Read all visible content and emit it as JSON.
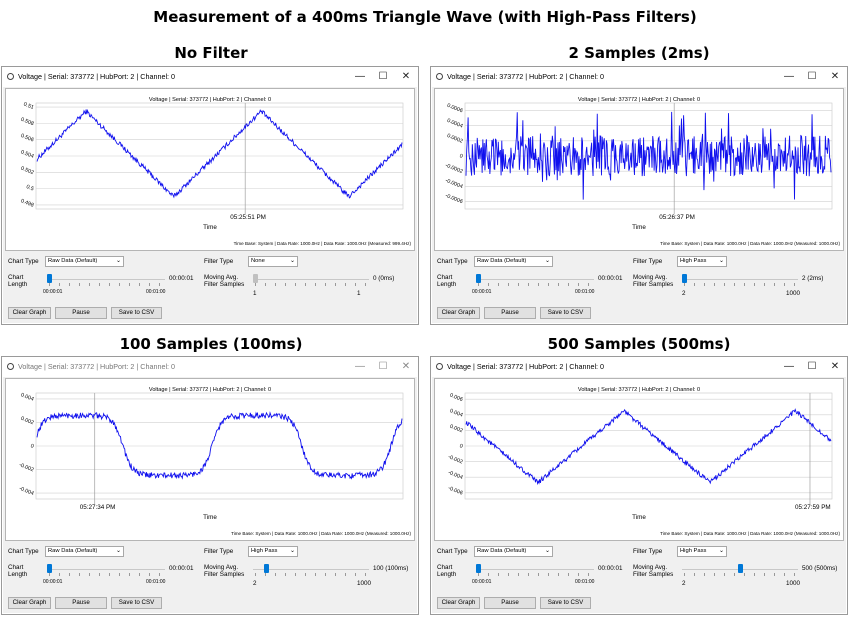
{
  "page_title": "Measurement of a 400ms Triangle Wave (with High-Pass Filters)",
  "panels": [
    {
      "heading": "No Filter",
      "window_title": "Voltage | Serial: 373772 | HubPort: 2 | Channel: 0",
      "window_active": true,
      "controls": {
        "minimize": "—",
        "maximize": "☐",
        "close": "✕"
      },
      "chart_header": "Voltage | Serial: 373772 | HubPort: 2 | Channel: 0",
      "y_ticks": [
        "0.51",
        "0.508",
        "0.506",
        "0.504",
        "0.502",
        "0.5",
        "0.498"
      ],
      "x_time_label": "05:25:51 PM",
      "x_axis_label": "Time",
      "info": "Time Base: System  |  Data Rate: 1000.0Hz  |  Data Rate: 1000.0Hz (Measured: 999.4Hz)",
      "chart_type_label": "Chart Type",
      "chart_type_value": "Raw Data (Default)",
      "chart_length_label": "Chart Length",
      "chart_length_value": "00:00:01",
      "chart_length_min": "00:00:01",
      "chart_length_max": "00:01:00",
      "filter_type_label": "Filter Type",
      "filter_type_value": "None",
      "ma_label": "Moving Avg. Filter Samples",
      "ma_value": "0 (0ms)",
      "ma_min": "1",
      "ma_max": "1",
      "ma_fraction": 0,
      "ma_disabled": true,
      "buttons": {
        "clear": "Clear Graph",
        "pause": "Pause",
        "save": "Save to CSV"
      }
    },
    {
      "heading": "2 Samples (2ms)",
      "window_title": "Voltage | Serial: 373772 | HubPort: 2 | Channel: 0",
      "window_active": true,
      "controls": {
        "minimize": "—",
        "maximize": "☐",
        "close": "✕"
      },
      "chart_header": "Voltage | Serial: 373772 | HubPort: 2 | Channel: 0",
      "y_ticks": [
        "0.0006",
        "0.0004",
        "0.0002",
        "0",
        "-0.0002",
        "-0.0004",
        "-0.0006"
      ],
      "x_time_label": "05:26:37 PM",
      "x_axis_label": "Time",
      "info": "Time Base: System  |  Data Rate: 1000.0Hz  |  Data Rate: 1000.0Hz (Measured: 1000.0Hz)",
      "chart_type_label": "Chart Type",
      "chart_type_value": "Raw Data (Default)",
      "chart_length_label": "Chart Length",
      "chart_length_value": "00:00:01",
      "chart_length_min": "00:00:01",
      "chart_length_max": "00:01:00",
      "filter_type_label": "Filter Type",
      "filter_type_value": "High Pass",
      "ma_label": "Moving Avg. Filter Samples",
      "ma_value": "2 (2ms)",
      "ma_min": "2",
      "ma_max": "1000",
      "ma_fraction": 0,
      "ma_disabled": false,
      "buttons": {
        "clear": "Clear Graph",
        "pause": "Pause",
        "save": "Save to CSV"
      }
    },
    {
      "heading": "100 Samples (100ms)",
      "window_title": "Voltage | Serial: 373772 | HubPort: 2 | Channel: 0",
      "window_active": false,
      "controls": {
        "minimize": "—",
        "maximize": "☐",
        "close": "✕"
      },
      "chart_header": "Voltage | Serial: 373772 | HubPort: 2 | Channel: 0",
      "y_ticks": [
        "0.004",
        "0.002",
        "0",
        "-0.002",
        "-0.004"
      ],
      "x_time_label": "05:27:34 PM",
      "x_axis_label": "Time",
      "info": "Time Base: System  |  Data Rate: 1000.0Hz  |  Data Rate: 1000.0Hz (Measured: 1000.0Hz)",
      "chart_type_label": "Chart Type",
      "chart_type_value": "Raw Data (Default)",
      "chart_length_label": "Chart Length",
      "chart_length_value": "00:00:01",
      "chart_length_min": "00:00:01",
      "chart_length_max": "00:01:00",
      "filter_type_label": "Filter Type",
      "filter_type_value": "High Pass",
      "ma_label": "Moving Avg. Filter Samples",
      "ma_value": "100 (100ms)",
      "ma_min": "2",
      "ma_max": "1000",
      "ma_fraction": 0.099,
      "ma_disabled": false,
      "buttons": {
        "clear": "Clear Graph",
        "pause": "Pause",
        "save": "Save to CSV"
      }
    },
    {
      "heading": "500 Samples (500ms)",
      "window_title": "Voltage | Serial: 373772 | HubPort: 2 | Channel: 0",
      "window_active": true,
      "controls": {
        "minimize": "—",
        "maximize": "☐",
        "close": "✕"
      },
      "chart_header": "Voltage | Serial: 373772 | HubPort: 2 | Channel: 0",
      "y_ticks": [
        "0.006",
        "0.004",
        "0.002",
        "0",
        "-0.002",
        "-0.004",
        "-0.006"
      ],
      "x_time_label": "05:27:59 PM",
      "x_axis_label": "Time",
      "info": "Time Base: System  |  Data Rate: 1000.0Hz  |  Data Rate: 1000.0Hz (Measured: 1000.0Hz)",
      "chart_type_label": "Chart Type",
      "chart_type_value": "Raw Data (Default)",
      "chart_length_label": "Chart Length",
      "chart_length_value": "00:00:01",
      "chart_length_min": "00:00:01",
      "chart_length_max": "00:01:00",
      "filter_type_label": "Filter Type",
      "filter_type_value": "High Pass",
      "ma_label": "Moving Avg. Filter Samples",
      "ma_value": "500 (500ms)",
      "ma_min": "2",
      "ma_max": "1000",
      "ma_fraction": 0.5,
      "ma_disabled": false,
      "buttons": {
        "clear": "Clear Graph",
        "pause": "Pause",
        "save": "Save to CSV"
      }
    }
  ],
  "chart_data": [
    {
      "type": "line",
      "x_label": "Time",
      "y_ticks": [
        0.51,
        0.508,
        0.506,
        0.504,
        0.502,
        0.5,
        0.498
      ],
      "ylim": [
        0.4975,
        0.5105
      ],
      "series": [
        {
          "shape": "triangle",
          "period_fraction": 0.48,
          "phase": 0.22,
          "min": 0.499,
          "max": 0.5095,
          "noise": 0.0003
        }
      ],
      "grid": true,
      "cursor_x_fraction": 0.57,
      "color": "#1010ee"
    },
    {
      "type": "line",
      "x_label": "Time",
      "y_ticks": [
        0.0006,
        0.0004,
        0.0002,
        0,
        -0.0002,
        -0.0004,
        -0.0006
      ],
      "ylim": [
        -0.0007,
        0.0007
      ],
      "series": [
        {
          "shape": "noise",
          "mean": 0,
          "amplitude": 0.0003,
          "spike": 0.0005
        }
      ],
      "grid": true,
      "cursor_x_fraction": 0.57,
      "color": "#1010ee"
    },
    {
      "type": "line",
      "x_label": "Time",
      "y_ticks": [
        0.004,
        0.002,
        0,
        -0.002,
        -0.004
      ],
      "ylim": [
        -0.0045,
        0.0045
      ],
      "series": [
        {
          "shape": "rounded-square",
          "period_fraction": 0.49,
          "phase": 0.02,
          "min": -0.0025,
          "max": 0.0026,
          "noise": 0.00025
        }
      ],
      "grid": true,
      "cursor_x_fraction": 0.16,
      "color": "#1010ee"
    },
    {
      "type": "line",
      "x_label": "Time",
      "y_ticks": [
        0.006,
        0.004,
        0.002,
        0,
        -0.002,
        -0.004,
        -0.006
      ],
      "ylim": [
        -0.0068,
        0.0068
      ],
      "series": [
        {
          "shape": "triangle",
          "period_fraction": 0.47,
          "phase": 0.58,
          "min": -0.0047,
          "max": 0.0045,
          "noise": 0.0003
        }
      ],
      "grid": true,
      "cursor_x_fraction": 0.94,
      "color": "#1010ee"
    }
  ]
}
